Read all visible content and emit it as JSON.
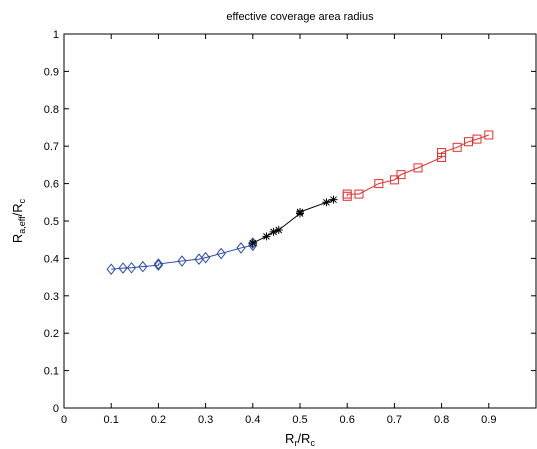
{
  "chart_data": {
    "type": "line",
    "title": "effective coverage area radius",
    "xlabel": {
      "main": "R",
      "sub1": "r",
      "mid": "/R",
      "sub2": "c"
    },
    "ylabel": {
      "main": "R",
      "sub1": "a,eff",
      "mid": "/R",
      "sub2": "c"
    },
    "xlim": [
      0,
      1
    ],
    "ylim": [
      0,
      1
    ],
    "xticks": [
      0,
      0.1,
      0.2,
      0.3,
      0.4,
      0.5,
      0.6,
      0.7,
      0.8,
      0.9
    ],
    "yticks": [
      0,
      0.1,
      0.2,
      0.3,
      0.4,
      0.5,
      0.6,
      0.7,
      0.8,
      0.9,
      1
    ],
    "grid": false,
    "series": [
      {
        "marker": "diamond",
        "color": "#2b4ba8",
        "x": [
          0.1,
          0.125,
          0.143,
          0.167,
          0.2,
          0.2,
          0.25,
          0.286,
          0.3,
          0.333,
          0.375,
          0.4,
          0.4
        ],
        "y": [
          0.371,
          0.374,
          0.375,
          0.378,
          0.382,
          0.385,
          0.393,
          0.398,
          0.402,
          0.413,
          0.428,
          0.435,
          0.441
        ]
      },
      {
        "marker": "star",
        "color": "#000000",
        "x": [
          0.4,
          0.429,
          0.444,
          0.455,
          0.5,
          0.5,
          0.556,
          0.571
        ],
        "y": [
          0.441,
          0.459,
          0.471,
          0.476,
          0.52,
          0.524,
          0.55,
          0.557
        ]
      },
      {
        "marker": "square",
        "color": "#e03030",
        "x": [
          0.6,
          0.6,
          0.625,
          0.667,
          0.7,
          0.714,
          0.75,
          0.8,
          0.8,
          0.833,
          0.857,
          0.875,
          0.9
        ],
        "y": [
          0.566,
          0.572,
          0.572,
          0.6,
          0.61,
          0.624,
          0.642,
          0.67,
          0.683,
          0.697,
          0.712,
          0.719,
          0.73
        ]
      }
    ]
  }
}
